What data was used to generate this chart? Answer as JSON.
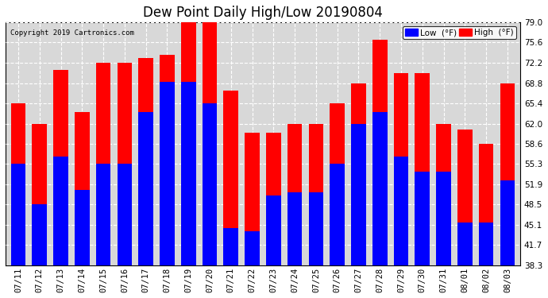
{
  "title": "Dew Point Daily High/Low 20190804",
  "copyright": "Copyright 2019 Cartronics.com",
  "dates": [
    "07/11",
    "07/12",
    "07/13",
    "07/14",
    "07/15",
    "07/16",
    "07/17",
    "07/18",
    "07/19",
    "07/20",
    "07/21",
    "07/22",
    "07/23",
    "07/24",
    "07/25",
    "07/26",
    "07/27",
    "07/28",
    "07/29",
    "07/30",
    "07/31",
    "08/01",
    "08/02",
    "08/03"
  ],
  "high": [
    65.4,
    62.0,
    71.0,
    64.0,
    72.2,
    72.2,
    73.0,
    73.5,
    79.0,
    79.0,
    67.5,
    60.5,
    60.5,
    62.0,
    62.0,
    65.4,
    68.8,
    76.0,
    70.5,
    70.5,
    62.0,
    61.0,
    58.6,
    68.8
  ],
  "low": [
    55.3,
    48.5,
    56.5,
    51.0,
    55.3,
    55.3,
    64.0,
    69.0,
    69.0,
    65.4,
    44.5,
    44.0,
    50.0,
    50.5,
    50.5,
    55.3,
    62.0,
    64.0,
    56.5,
    54.0,
    54.0,
    45.5,
    45.5,
    52.5
  ],
  "ylim_min": 38.3,
  "ylim_max": 79.0,
  "yticks": [
    38.3,
    41.7,
    45.1,
    48.5,
    51.9,
    55.3,
    58.6,
    62.0,
    65.4,
    68.8,
    72.2,
    75.6,
    79.0
  ],
  "high_color": "#ff0000",
  "low_color": "#0000ff",
  "background_color": "#ffffff",
  "plot_bg_color": "#d8d8d8",
  "grid_color": "#ffffff",
  "title_fontsize": 12,
  "bar_width": 0.7,
  "legend_low_label": "Low  (°F)",
  "legend_high_label": "High  (°F)"
}
